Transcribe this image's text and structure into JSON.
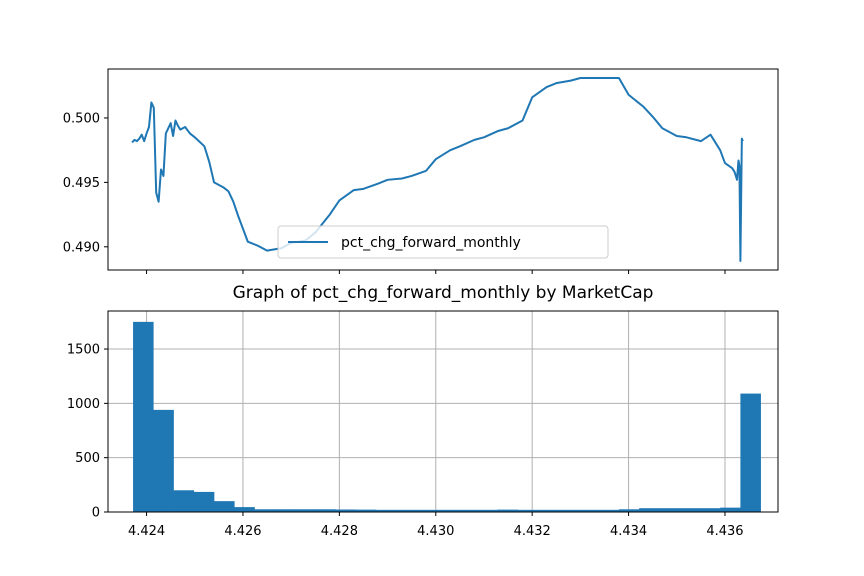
{
  "chart_data": [
    {
      "type": "line",
      "title": "",
      "xlabel": "",
      "ylabel": "",
      "ylim": [
        0.4882,
        0.5038
      ],
      "xlim": [
        4.4232,
        4.4371
      ],
      "grid": false,
      "legend": "lower center",
      "y_ticks": [
        "0.490",
        "0.495",
        "0.500"
      ],
      "series": [
        {
          "name": "pct_chg_forward_monthly",
          "color": "#1f77b4",
          "x": [
            4.4237,
            4.42375,
            4.4238,
            4.42385,
            4.4239,
            4.42395,
            4.424,
            4.42405,
            4.4241,
            4.42415,
            4.4242,
            4.42425,
            4.4243,
            4.42435,
            4.4244,
            4.42445,
            4.4245,
            4.42455,
            4.4246,
            4.42465,
            4.4247,
            4.4248,
            4.4249,
            4.425,
            4.4252,
            4.4253,
            4.42535,
            4.4254,
            4.42545,
            4.4255,
            4.4256,
            4.4257,
            4.4258,
            4.4259,
            4.4261,
            4.4263,
            4.4265,
            4.4268,
            4.427,
            4.4273,
            4.4275,
            4.4278,
            4.428,
            4.4283,
            4.4285,
            4.4288,
            4.429,
            4.4293,
            4.4295,
            4.4298,
            4.43,
            4.4303,
            4.4305,
            4.4308,
            4.431,
            4.4313,
            4.4315,
            4.4318,
            4.432,
            4.4323,
            4.4325,
            4.4328,
            4.433,
            4.4333,
            4.43345,
            4.4336,
            4.4338,
            4.434,
            4.4343,
            4.4345,
            4.4347,
            4.435,
            4.4352,
            4.4355,
            4.4357,
            4.4359,
            4.436,
            4.43615,
            4.4362,
            4.43625,
            4.43628,
            4.4363,
            4.43632,
            4.43635,
            4.43637
          ],
          "y": [
            0.4981,
            0.4983,
            0.4982,
            0.4984,
            0.4987,
            0.4982,
            0.4988,
            0.4993,
            0.5012,
            0.5008,
            0.4942,
            0.4935,
            0.496,
            0.4955,
            0.4988,
            0.4992,
            0.4996,
            0.4986,
            0.4998,
            0.4994,
            0.4991,
            0.4993,
            0.4988,
            0.4985,
            0.4978,
            0.4966,
            0.4958,
            0.495,
            0.4949,
            0.4948,
            0.4946,
            0.4943,
            0.4935,
            0.4924,
            0.4904,
            0.4901,
            0.4897,
            0.4899,
            0.4903,
            0.4905,
            0.4911,
            0.4925,
            0.4936,
            0.4944,
            0.4945,
            0.4949,
            0.4952,
            0.4953,
            0.4955,
            0.4959,
            0.4968,
            0.4975,
            0.4978,
            0.4983,
            0.4985,
            0.499,
            0.4992,
            0.4998,
            0.5016,
            0.5024,
            0.5027,
            0.5029,
            0.5031,
            0.5031,
            0.5031,
            0.5031,
            0.5031,
            0.5018,
            0.5009,
            0.5001,
            0.4992,
            0.4986,
            0.4985,
            0.4982,
            0.4987,
            0.4975,
            0.4965,
            0.4961,
            0.4958,
            0.4952,
            0.4967,
            0.4963,
            0.4889,
            0.4984,
            0.4982
          ]
        }
      ]
    },
    {
      "type": "bar",
      "title": "Graph of pct_chg_forward_monthly by MarketCap",
      "xlabel": "",
      "ylabel": "",
      "xlim": [
        4.4232,
        4.4371
      ],
      "ylim": [
        0,
        1850
      ],
      "grid": true,
      "x_ticks": [
        "4.424",
        "4.426",
        "4.428",
        "4.430",
        "4.432",
        "4.434",
        "4.436"
      ],
      "y_ticks": [
        "0",
        "500",
        "1000",
        "1500"
      ],
      "bin_edges": [
        4.42372,
        4.42414,
        4.42456,
        4.42498,
        4.4254,
        4.42582,
        4.42624,
        4.42666,
        4.42708,
        4.4275,
        4.42792,
        4.42834,
        4.42876,
        4.42918,
        4.4296,
        4.43002,
        4.43044,
        4.43086,
        4.43128,
        4.4317,
        4.43212,
        4.43254,
        4.43296,
        4.43338,
        4.4338,
        4.43422,
        4.43464,
        4.43506,
        4.43548,
        4.4359,
        4.43632,
        4.43674
      ],
      "values": [
        1750,
        940,
        200,
        185,
        100,
        45,
        25,
        25,
        25,
        25,
        23,
        22,
        20,
        20,
        20,
        20,
        20,
        20,
        22,
        20,
        20,
        20,
        20,
        20,
        25,
        35,
        35,
        35,
        35,
        40,
        1090
      ],
      "color": "#1f77b4"
    }
  ]
}
